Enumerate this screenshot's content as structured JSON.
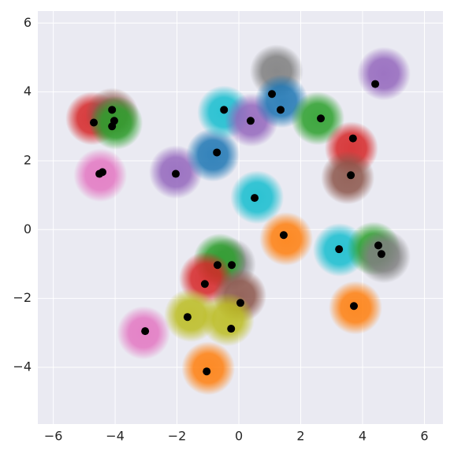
{
  "chart_data": {
    "type": "scatter",
    "xlim": [
      -6.5,
      6.6
    ],
    "ylim": [
      -5.65,
      6.35
    ],
    "xticks": [
      {
        "value": -6,
        "label": "−6"
      },
      {
        "value": -4,
        "label": "−4"
      },
      {
        "value": -2,
        "label": "−2"
      },
      0,
      2,
      4,
      6
    ],
    "yticks": [
      {
        "value": -4,
        "label": "−4"
      },
      {
        "value": -2,
        "label": "−2"
      },
      0,
      2,
      4,
      6
    ],
    "grid": true,
    "series": [
      {
        "x": [
          -4.74,
          -4.1,
          -3.97,
          -4.48,
          -2.04,
          -0.84,
          -0.48,
          0.41,
          1.22,
          1.38,
          2.55,
          4.69,
          3.64,
          3.52,
          0.59,
          1.53,
          3.26,
          4.36,
          4.69,
          -0.31,
          -0.61,
          -1.07,
          0.03,
          -1.55,
          -0.36,
          -3.08,
          -0.99,
          3.77
        ],
        "y": [
          3.23,
          3.34,
          3.1,
          1.58,
          1.67,
          2.17,
          3.41,
          3.18,
          4.6,
          3.73,
          3.23,
          4.53,
          2.36,
          1.51,
          0.94,
          -0.27,
          -0.59,
          -0.55,
          -0.78,
          -1.01,
          -0.89,
          -1.42,
          -1.92,
          -2.49,
          -2.61,
          -3.0,
          -4.03,
          -2.27
        ],
        "colors": [
          "#d62728",
          "#8c564b",
          "#2ca02c",
          "#e377c2",
          "#9467bd",
          "#1f77b4",
          "#17becf",
          "#9467bd",
          "#7f7f7f",
          "#1f77b4",
          "#2ca02c",
          "#9467bd",
          "#d62728",
          "#8c564b",
          "#17becf",
          "#ff7f0e",
          "#17becf",
          "#2ca02c",
          "#7f7f7f",
          "#7f7f7f",
          "#2ca02c",
          "#d62728",
          "#8c564b",
          "#bcbd22",
          "#bcbd22",
          "#e377c2",
          "#ff7f0e",
          "#ff7f0e"
        ]
      },
      {
        "color": "#000000",
        "x": [
          -4.69,
          -4.1,
          -4.03,
          -4.1,
          -4.51,
          -4.41,
          -2.04,
          -0.71,
          -0.48,
          0.38,
          1.07,
          1.35,
          2.65,
          4.41,
          3.69,
          3.62,
          0.51,
          1.45,
          3.24,
          4.51,
          4.61,
          -0.69,
          -0.23,
          -1.1,
          0.05,
          -1.66,
          -0.25,
          -3.03,
          -1.04,
          3.72
        ],
        "y": [
          3.11,
          3.48,
          3.16,
          3.0,
          1.62,
          1.67,
          1.62,
          2.24,
          3.48,
          3.16,
          3.94,
          3.48,
          3.23,
          4.23,
          2.65,
          1.58,
          0.92,
          -0.16,
          -0.57,
          -0.46,
          -0.71,
          -1.03,
          -1.03,
          -1.58,
          -2.13,
          -2.54,
          -2.88,
          -2.95,
          -4.12,
          -2.22
        ]
      }
    ]
  }
}
